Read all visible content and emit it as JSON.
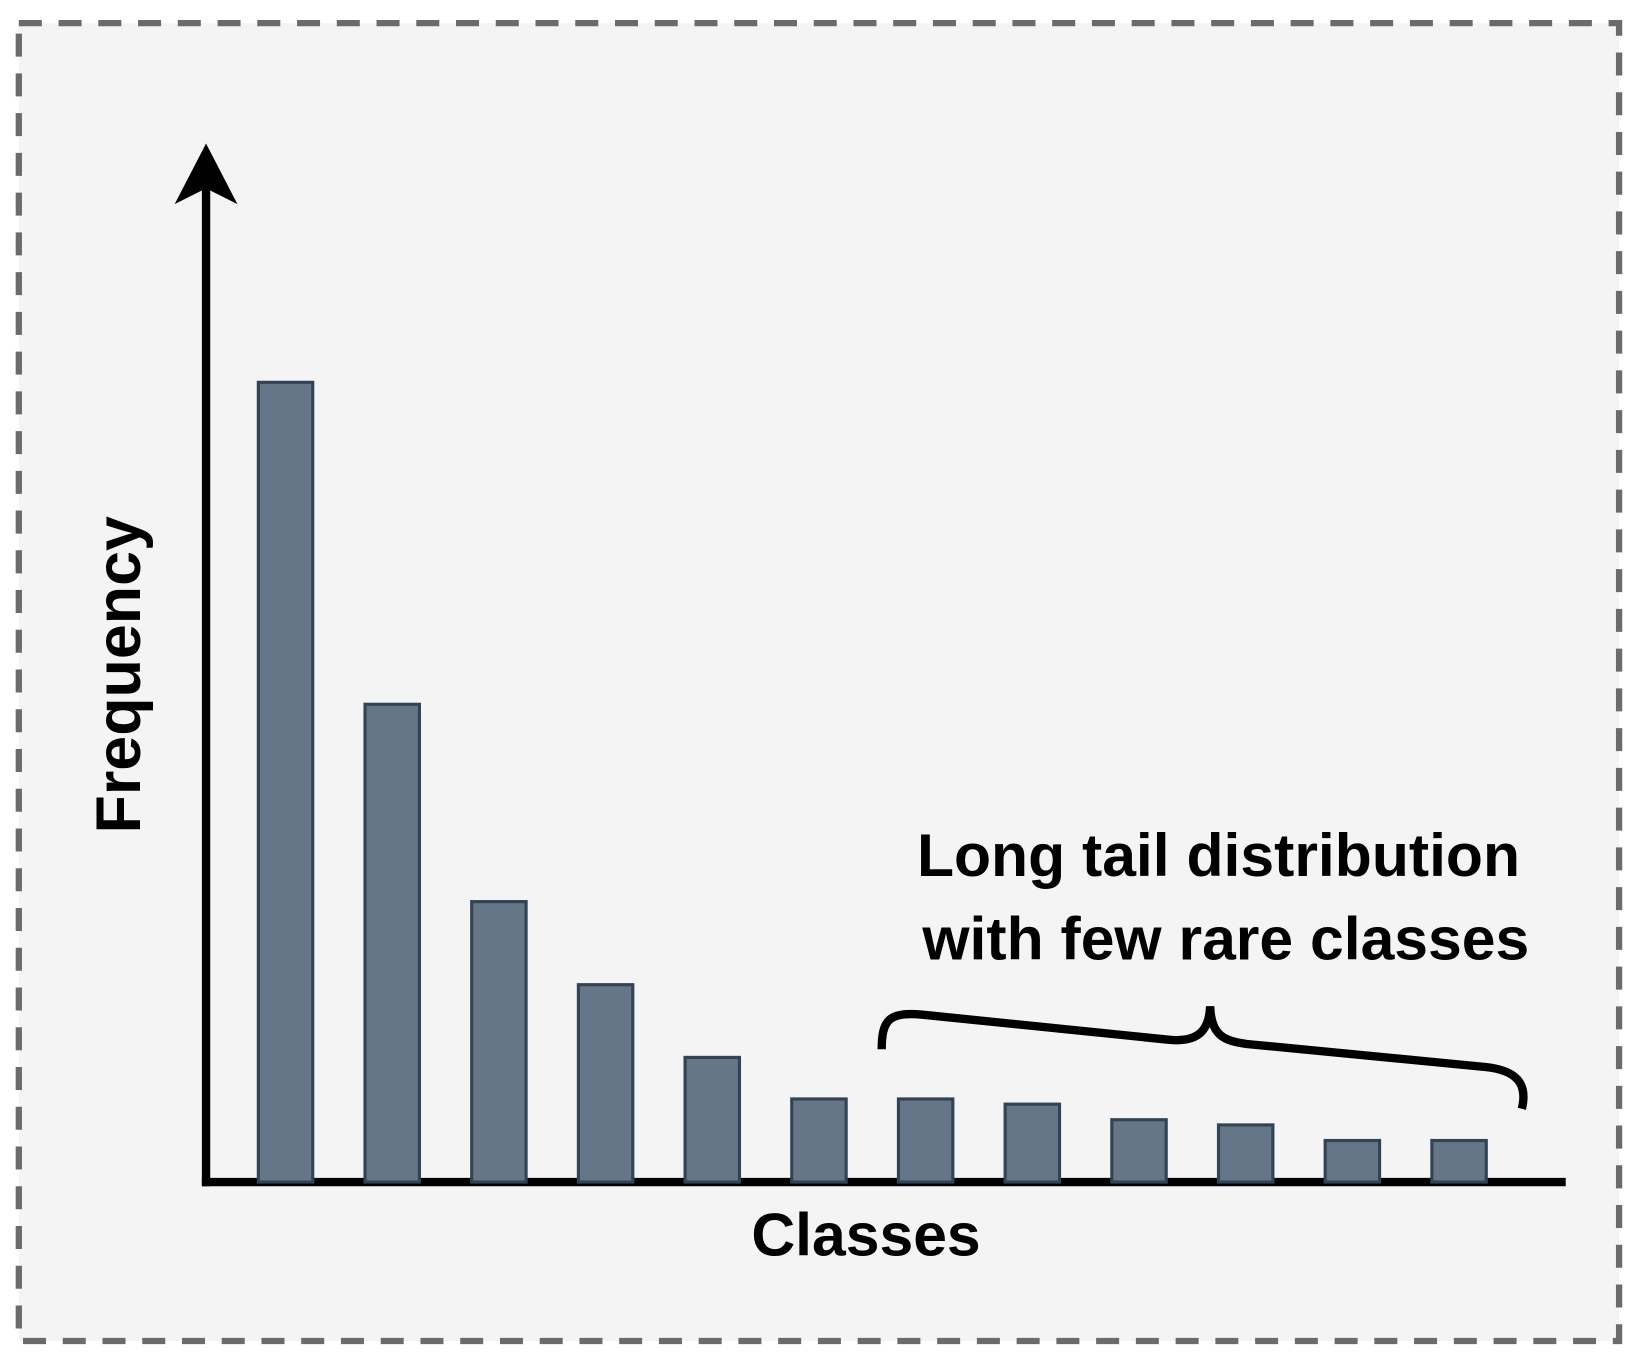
{
  "chart_data": {
    "type": "bar",
    "x_label": "Classes",
    "y_label": "Frequency",
    "annotation": [
      "Long tail distribution",
      "with few rare classes"
    ],
    "categories": [
      null,
      null,
      null,
      null,
      null,
      null,
      null,
      null,
      null,
      null,
      null,
      null
    ],
    "values": [
      77,
      46,
      27,
      19,
      12,
      8,
      8,
      7.5,
      6,
      5.5,
      4,
      4
    ],
    "color": "#647687",
    "ylim": [
      0,
      100
    ]
  }
}
